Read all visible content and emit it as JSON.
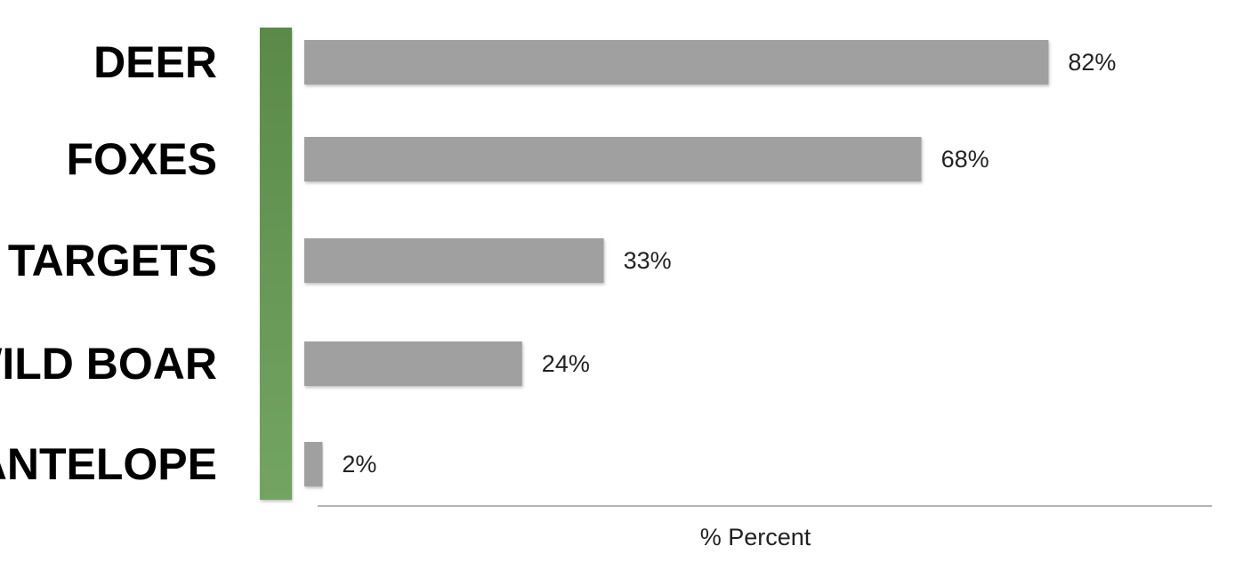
{
  "chart_data": {
    "type": "bar",
    "orientation": "horizontal",
    "categories": [
      "DEER",
      "FOXES",
      "TARGETS",
      "WILD BOAR",
      "ANTELOPE"
    ],
    "values": [
      82,
      68,
      33,
      24,
      2
    ],
    "value_labels": [
      "82%",
      "68%",
      "33%",
      "24%",
      "2%"
    ],
    "xlabel": "% Percent",
    "ylabel": "",
    "xlim": [
      0,
      100
    ],
    "grid": false,
    "legend": "none",
    "colors": {
      "bar": "#a0a0a0",
      "axis_band_top": "#5a8a48",
      "axis_band_bottom": "#73a562",
      "axis_line": "#888888",
      "text": "#000000"
    }
  }
}
